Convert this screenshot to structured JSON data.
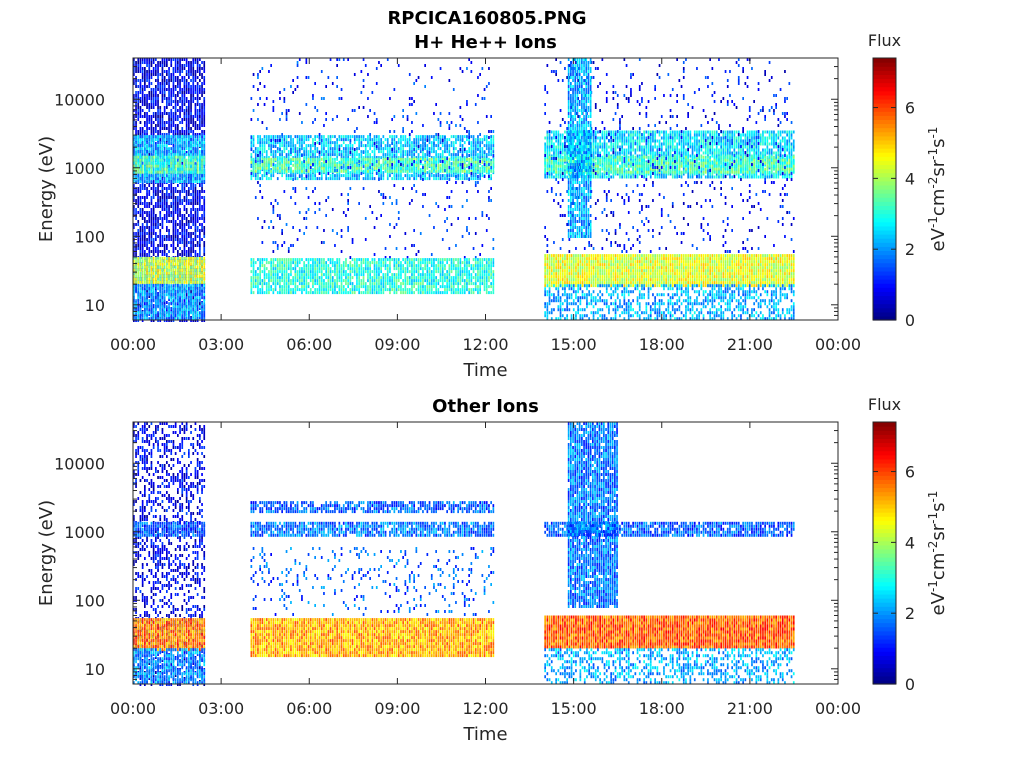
{
  "figure": {
    "title": "RPCICA160805.PNG"
  },
  "colormap": "jet",
  "chart_data": [
    {
      "type": "heatmap",
      "title": "H+ He++ Ions",
      "xlabel": "Time",
      "ylabel": "Energy (eV)",
      "x_ticks": [
        "00:00",
        "03:00",
        "06:00",
        "09:00",
        "12:00",
        "15:00",
        "18:00",
        "21:00",
        "00:00"
      ],
      "y_ticks": [
        "10",
        "100",
        "1000",
        "10000"
      ],
      "y_scale": "log",
      "ylim": [
        6,
        40000
      ],
      "xlim_hours": [
        0,
        24
      ],
      "colorbar": {
        "title": "Flux",
        "label_parts": [
          "eV",
          "-1",
          "cm",
          "-2",
          "sr",
          "-1",
          "s",
          "-1"
        ],
        "ticks": [
          "0",
          "2",
          "4",
          "6"
        ],
        "range": [
          0,
          7.4
        ]
      },
      "segments": [
        {
          "start_h": 0.0,
          "end_h": 2.4,
          "bands": [
            {
              "e_lo": 6,
              "e_hi": 40000,
              "level": 0.8,
              "density": 0.75
            },
            {
              "e_lo": 600,
              "e_hi": 3000,
              "level": 2.2,
              "density": 0.95
            },
            {
              "e_lo": 900,
              "e_hi": 1500,
              "level": 3.2,
              "density": 0.9
            },
            {
              "e_lo": 22,
              "e_hi": 50,
              "level": 4.2,
              "density": 1.0
            },
            {
              "e_lo": 6,
              "e_hi": 20,
              "level": 2.0,
              "density": 0.9
            }
          ]
        },
        {
          "start_h": 4.0,
          "end_h": 12.3,
          "bands": [
            {
              "e_lo": 700,
              "e_hi": 3000,
              "level": 2.4,
              "density": 0.8
            },
            {
              "e_lo": 900,
              "e_hi": 1400,
              "level": 3.4,
              "density": 0.85
            },
            {
              "e_lo": 50,
              "e_hi": 40000,
              "level": 1.2,
              "density": 0.06
            },
            {
              "e_lo": 15,
              "e_hi": 48,
              "level": 3.0,
              "density": 0.85
            }
          ]
        },
        {
          "start_h": 14.0,
          "end_h": 22.5,
          "bands": [
            {
              "e_lo": 700,
              "e_hi": 3500,
              "level": 2.6,
              "density": 0.85
            },
            {
              "e_lo": 900,
              "e_hi": 1500,
              "level": 3.3,
              "density": 0.85
            },
            {
              "e_lo": 20,
              "e_hi": 55,
              "level": 4.4,
              "density": 1.0
            },
            {
              "e_lo": 6,
              "e_hi": 20,
              "level": 2.2,
              "density": 0.55
            },
            {
              "e_lo": 60,
              "e_hi": 40000,
              "level": 1.0,
              "density": 0.08
            }
          ]
        },
        {
          "start_h": 14.8,
          "end_h": 15.6,
          "bands": [
            {
              "e_lo": 100,
              "e_hi": 40000,
              "level": 2.2,
              "density": 0.9
            }
          ]
        }
      ]
    },
    {
      "type": "heatmap",
      "title": "Other Ions",
      "xlabel": "Time",
      "ylabel": "Energy (eV)",
      "x_ticks": [
        "00:00",
        "03:00",
        "06:00",
        "09:00",
        "12:00",
        "15:00",
        "18:00",
        "21:00",
        "00:00"
      ],
      "y_ticks": [
        "10",
        "100",
        "1000",
        "10000"
      ],
      "y_scale": "log",
      "ylim": [
        6,
        40000
      ],
      "xlim_hours": [
        0,
        24
      ],
      "colorbar": {
        "title": "Flux",
        "label_parts": [
          "eV",
          "-1",
          "cm",
          "-2",
          "sr",
          "-1",
          "s",
          "-1"
        ],
        "ticks": [
          "0",
          "2",
          "4",
          "6"
        ],
        "range": [
          0,
          7.4
        ]
      },
      "segments": [
        {
          "start_h": 0.0,
          "end_h": 2.4,
          "bands": [
            {
              "e_lo": 6,
              "e_hi": 40000,
              "level": 0.8,
              "density": 0.4
            },
            {
              "e_lo": 900,
              "e_hi": 1400,
              "level": 1.6,
              "density": 0.9
            },
            {
              "e_lo": 20,
              "e_hi": 55,
              "level": 5.6,
              "density": 1.0
            },
            {
              "e_lo": 6,
              "e_hi": 20,
              "level": 2.0,
              "density": 0.8
            }
          ]
        },
        {
          "start_h": 4.0,
          "end_h": 12.3,
          "bands": [
            {
              "e_lo": 2000,
              "e_hi": 2800,
              "level": 1.6,
              "density": 0.75
            },
            {
              "e_lo": 900,
              "e_hi": 1400,
              "level": 1.8,
              "density": 0.8
            },
            {
              "e_lo": 60,
              "e_hi": 600,
              "level": 1.6,
              "density": 0.12
            },
            {
              "e_lo": 15,
              "e_hi": 55,
              "level": 5.2,
              "density": 1.0
            }
          ]
        },
        {
          "start_h": 14.0,
          "end_h": 22.5,
          "bands": [
            {
              "e_lo": 900,
              "e_hi": 1400,
              "level": 1.6,
              "density": 0.85
            },
            {
              "e_lo": 20,
              "e_hi": 60,
              "level": 5.8,
              "density": 1.0
            },
            {
              "e_lo": 6,
              "e_hi": 20,
              "level": 2.2,
              "density": 0.45
            }
          ]
        },
        {
          "start_h": 14.8,
          "end_h": 16.5,
          "bands": [
            {
              "e_lo": 80,
              "e_hi": 40000,
              "level": 1.8,
              "density": 0.9
            }
          ]
        }
      ]
    }
  ]
}
